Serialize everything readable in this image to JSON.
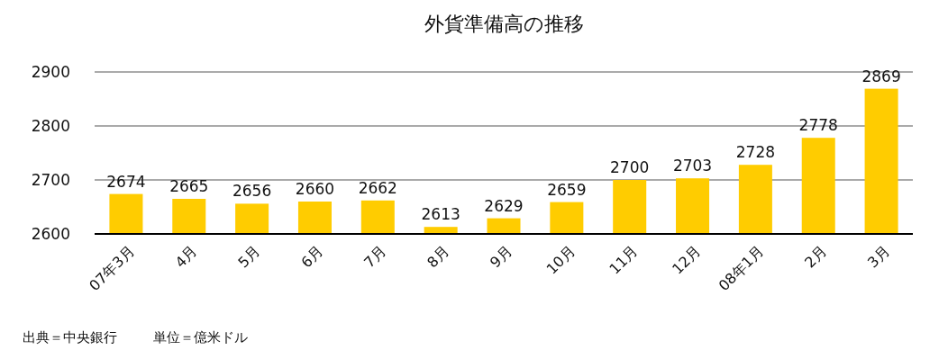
{
  "chart_data": {
    "type": "bar",
    "title": "外貨準備高の推移",
    "categories": [
      "07年3月",
      "4月",
      "5月",
      "6月",
      "7月",
      "8月",
      "9月",
      "10月",
      "11月",
      "12月",
      "08年1月",
      "2月",
      "3月"
    ],
    "values": [
      2674,
      2665,
      2656,
      2660,
      2662,
      2613,
      2629,
      2659,
      2700,
      2703,
      2728,
      2778,
      2869
    ],
    "color": "#ffcc00",
    "ylim": [
      2600,
      2900
    ],
    "yticks": [
      2600,
      2700,
      2800,
      2900
    ],
    "grid": "y",
    "data_labels": true,
    "annotations": [
      "出典＝中央銀行",
      "単位＝億米ドル"
    ]
  }
}
